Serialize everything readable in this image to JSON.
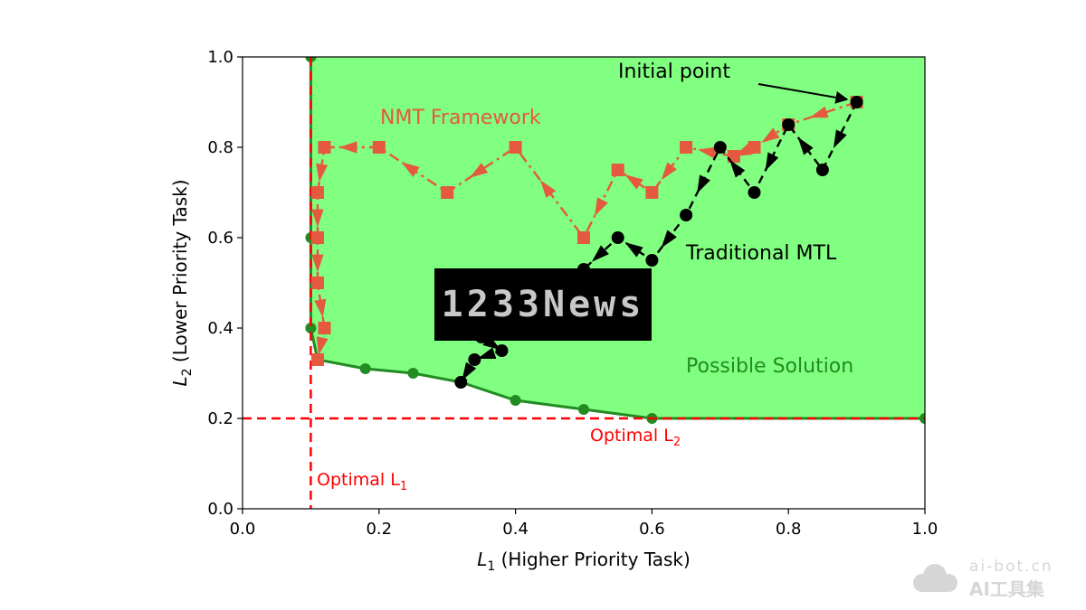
{
  "chart_data": {
    "type": "line",
    "xlabel_main": "L",
    "xlabel_sub": "1",
    "xlabel_rest": " (Higher Priority Task)",
    "ylabel_main": "L",
    "ylabel_sub": "2",
    "ylabel_rest": " (Lower Priority Task)",
    "xlim": [
      0,
      1
    ],
    "ylim": [
      0,
      1
    ],
    "xticks": [
      "0.0",
      "0.2",
      "0.4",
      "0.6",
      "0.8",
      "1.0"
    ],
    "yticks": [
      "0.0",
      "0.2",
      "0.4",
      "0.6",
      "0.8",
      "1.0"
    ],
    "grid": false,
    "colors": {
      "region": "#80ff80",
      "frontier": "#228b22",
      "nmt": "#e4593f",
      "mtl": "#000000",
      "optimal": "#ff0000"
    },
    "possible_region": {
      "label": "Possible Solution",
      "boundary": [
        [
          0.1,
          1.0
        ],
        [
          0.1,
          0.6
        ],
        [
          0.1,
          0.4
        ],
        [
          0.11,
          0.33
        ],
        [
          0.18,
          0.31
        ],
        [
          0.25,
          0.3
        ],
        [
          0.32,
          0.28
        ],
        [
          0.4,
          0.24
        ],
        [
          0.5,
          0.22
        ],
        [
          0.6,
          0.2
        ],
        [
          1.0,
          0.2
        ]
      ]
    },
    "series": [
      {
        "name": "NMT Framework",
        "style": "dash-dot",
        "marker": "square",
        "x": [
          0.9,
          0.8,
          0.75,
          0.72,
          0.65,
          0.6,
          0.55,
          0.5,
          0.4,
          0.3,
          0.2,
          0.12,
          0.11,
          0.11,
          0.11,
          0.12,
          0.11
        ],
        "y": [
          0.9,
          0.85,
          0.8,
          0.78,
          0.8,
          0.7,
          0.75,
          0.6,
          0.8,
          0.7,
          0.8,
          0.8,
          0.7,
          0.6,
          0.5,
          0.4,
          0.33
        ]
      },
      {
        "name": "Traditional MTL",
        "style": "dashed",
        "marker": "circle",
        "x": [
          0.9,
          0.85,
          0.8,
          0.75,
          0.7,
          0.65,
          0.6,
          0.55,
          0.5,
          0.47,
          0.42,
          0.35,
          0.38,
          0.34,
          0.32
        ],
        "y": [
          0.9,
          0.75,
          0.85,
          0.7,
          0.8,
          0.65,
          0.55,
          0.6,
          0.53,
          0.45,
          0.42,
          0.38,
          0.35,
          0.33,
          0.28
        ]
      }
    ],
    "reference_lines": [
      {
        "orientation": "vertical",
        "x": 0.1,
        "label_main": "Optimal L",
        "label_sub": "1"
      },
      {
        "orientation": "horizontal",
        "y": 0.2,
        "label_main": "Optimal L",
        "label_sub": "2"
      }
    ],
    "annotations": {
      "initial_point": "Initial point",
      "initial_point_xy": [
        0.9,
        0.9
      ]
    }
  },
  "watermarks": {
    "overlay": "1233News",
    "site_url": "ai-bot.cn",
    "site_name": "AI工具集"
  }
}
